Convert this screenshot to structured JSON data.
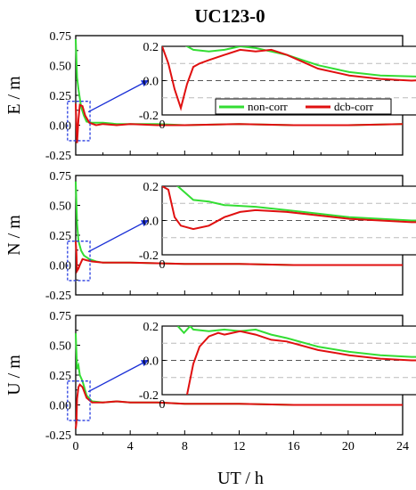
{
  "title": "UC123-0",
  "xlabel": "UT / h",
  "colors": {
    "non_corr": "#33dd33",
    "dcb_corr": "#e01010",
    "arrow": "#1a2fd6",
    "box": "#2a3fe0",
    "ref_black": "#555555",
    "ref_gray": "#bbbbbb"
  },
  "chart_data": [
    {
      "type": "line",
      "panel": "E",
      "ylabel": "E / m",
      "xlim": [
        0,
        24
      ],
      "ylim": [
        -0.25,
        0.75
      ],
      "xticks": [
        0,
        4,
        8,
        12,
        16,
        20,
        24
      ],
      "yticks": [
        "0.75",
        "0.50",
        "0.25",
        "0.00",
        "-0.25"
      ],
      "legend": {
        "position": "inside-inset-bottom-right",
        "entries": [
          "non-corr",
          "dcb-corr"
        ]
      },
      "series": [
        {
          "name": "non-corr",
          "color": "#33dd33",
          "x": [
            0,
            0.1,
            0.2,
            0.4,
            0.6,
            0.8,
            1.2,
            2,
            3,
            4,
            6,
            8,
            12,
            16,
            20,
            24
          ],
          "y": [
            0.72,
            0.4,
            0.3,
            0.15,
            0.08,
            0.03,
            0.02,
            0.02,
            0.01,
            0.01,
            0.01,
            0.0,
            0.01,
            0.0,
            0.0,
            0.01
          ]
        },
        {
          "name": "dcb-corr",
          "color": "#e01010",
          "x": [
            0,
            0.1,
            0.2,
            0.3,
            0.5,
            0.7,
            1.0,
            1.5,
            2,
            3,
            4,
            6,
            8,
            12,
            16,
            20,
            24
          ],
          "y": [
            0.18,
            -0.15,
            0.05,
            0.17,
            0.16,
            0.08,
            0.02,
            0.0,
            0.01,
            0.0,
            0.01,
            0.0,
            0.0,
            0.01,
            0.0,
            0.0,
            0.01
          ]
        }
      ],
      "inset": {
        "xlim": [
          0,
          1
        ],
        "ylim": [
          -0.2,
          0.2
        ],
        "xticks": [
          "0",
          "1"
        ],
        "yticks": [
          "0.2",
          "0.0",
          "-0.2"
        ],
        "ref_lines": [
          0.1,
          0.0,
          -0.1
        ],
        "series": [
          {
            "name": "non-corr",
            "x": [
              0,
              0.03,
              0.06,
              0.1,
              0.15,
              0.2,
              0.25,
              0.3,
              0.35,
              0.4,
              0.5,
              0.6,
              0.7,
              0.8,
              0.9,
              1.0
            ],
            "y": [
              0.35,
              0.28,
              0.22,
              0.18,
              0.17,
              0.18,
              0.2,
              0.19,
              0.17,
              0.15,
              0.09,
              0.05,
              0.03,
              0.025,
              0.02,
              0.02
            ]
          },
          {
            "name": "dcb-corr",
            "x": [
              0,
              0.02,
              0.04,
              0.06,
              0.08,
              0.1,
              0.12,
              0.15,
              0.2,
              0.25,
              0.3,
              0.35,
              0.4,
              0.5,
              0.6,
              0.7,
              0.8,
              0.9,
              1.0
            ],
            "y": [
              0.2,
              0.1,
              -0.05,
              -0.16,
              -0.02,
              0.08,
              0.1,
              0.12,
              0.15,
              0.18,
              0.17,
              0.18,
              0.15,
              0.07,
              0.03,
              0.01,
              0.0,
              0.01,
              0.01
            ]
          }
        ]
      }
    },
    {
      "type": "line",
      "panel": "N",
      "ylabel": "N / m",
      "xlim": [
        0,
        24
      ],
      "ylim": [
        -0.25,
        0.75
      ],
      "xticks": [
        0,
        4,
        8,
        12,
        16,
        20,
        24
      ],
      "yticks": [
        "0.75",
        "0.50",
        "0.25",
        "0.00",
        "-0.25"
      ],
      "series": [
        {
          "name": "non-corr",
          "color": "#33dd33",
          "x": [
            0,
            0.1,
            0.2,
            0.4,
            0.6,
            1.0,
            1.5,
            2,
            4,
            8,
            12,
            16,
            20,
            24
          ],
          "y": [
            0.7,
            0.35,
            0.2,
            0.12,
            0.08,
            0.05,
            0.03,
            0.02,
            0.02,
            0.01,
            0.01,
            0.0,
            0.0,
            0.0
          ]
        },
        {
          "name": "dcb-corr",
          "color": "#e01010",
          "x": [
            0,
            0.05,
            0.1,
            0.2,
            0.3,
            0.5,
            0.8,
            1.2,
            2,
            4,
            8,
            12,
            16,
            20,
            24
          ],
          "y": [
            0.2,
            0.1,
            -0.05,
            -0.03,
            0.0,
            0.05,
            0.04,
            0.03,
            0.02,
            0.02,
            0.01,
            0.01,
            0.0,
            0.0,
            0.0
          ]
        }
      ],
      "inset": {
        "xlim": [
          0,
          1
        ],
        "ylim": [
          -0.2,
          0.2
        ],
        "xticks": [
          "0",
          "1"
        ],
        "yticks": [
          "0.2",
          "0.0",
          "-0.2"
        ],
        "ref_lines": [
          0.1,
          0.0,
          -0.1
        ],
        "series": [
          {
            "name": "non-corr",
            "x": [
              0,
              0.05,
              0.1,
              0.15,
              0.2,
              0.3,
              0.4,
              0.5,
              0.6,
              0.7,
              0.8,
              0.9,
              1.0
            ],
            "y": [
              0.35,
              0.2,
              0.12,
              0.11,
              0.09,
              0.08,
              0.06,
              0.04,
              0.02,
              0.01,
              0.0,
              0.0,
              0.0
            ]
          },
          {
            "name": "dcb-corr",
            "x": [
              0,
              0.02,
              0.04,
              0.06,
              0.1,
              0.15,
              0.2,
              0.25,
              0.3,
              0.4,
              0.5,
              0.6,
              0.7,
              0.8,
              0.9,
              1.0
            ],
            "y": [
              0.2,
              0.18,
              0.02,
              -0.03,
              -0.05,
              -0.03,
              0.02,
              0.05,
              0.06,
              0.05,
              0.03,
              0.01,
              0.0,
              -0.01,
              -0.01,
              0.0
            ]
          }
        ]
      }
    },
    {
      "type": "line",
      "panel": "U",
      "ylabel": "U / m",
      "xlim": [
        0,
        24
      ],
      "ylim": [
        -0.25,
        0.75
      ],
      "xticks": [
        0,
        4,
        8,
        12,
        16,
        20,
        24
      ],
      "yticks": [
        "0.75",
        "0.50",
        "0.25",
        "0.00",
        "-0.25"
      ],
      "series": [
        {
          "name": "non-corr",
          "color": "#33dd33",
          "x": [
            0,
            0.1,
            0.2,
            0.3,
            0.5,
            0.8,
            1.2,
            2,
            3,
            4,
            6,
            8,
            12,
            16,
            20,
            24
          ],
          "y": [
            0.6,
            0.3,
            0.33,
            0.25,
            0.2,
            0.08,
            0.03,
            0.02,
            0.03,
            0.02,
            0.02,
            0.01,
            0.01,
            0.0,
            0.0,
            0.0
          ]
        },
        {
          "name": "dcb-corr",
          "color": "#e01010",
          "x": [
            0,
            0.05,
            0.1,
            0.2,
            0.3,
            0.5,
            0.8,
            1.2,
            2,
            3,
            4,
            6,
            8,
            12,
            16,
            20,
            24
          ],
          "y": [
            -0.2,
            -0.15,
            0.05,
            0.15,
            0.17,
            0.15,
            0.06,
            0.02,
            0.02,
            0.03,
            0.02,
            0.02,
            0.01,
            0.01,
            0.0,
            0.0,
            0.0
          ]
        }
      ],
      "inset": {
        "xlim": [
          0,
          1
        ],
        "ylim": [
          -0.2,
          0.2
        ],
        "xticks": [
          "0",
          "1"
        ],
        "yticks": [
          "0.2",
          "0.0",
          "-0.2"
        ],
        "ref_lines": [
          0.1,
          0.0,
          -0.1
        ],
        "series": [
          {
            "name": "non-corr",
            "x": [
              0.05,
              0.07,
              0.09,
              0.1,
              0.15,
              0.2,
              0.25,
              0.3,
              0.35,
              0.4,
              0.5,
              0.6,
              0.7,
              0.8,
              0.9,
              1.0
            ],
            "y": [
              0.2,
              0.16,
              0.2,
              0.18,
              0.17,
              0.18,
              0.17,
              0.18,
              0.15,
              0.13,
              0.08,
              0.05,
              0.03,
              0.02,
              0.02,
              0.02
            ]
          },
          {
            "name": "dcb-corr",
            "x": [
              0.08,
              0.1,
              0.12,
              0.15,
              0.18,
              0.2,
              0.25,
              0.3,
              0.35,
              0.4,
              0.5,
              0.6,
              0.7,
              0.8,
              0.9,
              1.0
            ],
            "y": [
              -0.2,
              -0.02,
              0.08,
              0.14,
              0.16,
              0.15,
              0.17,
              0.15,
              0.12,
              0.11,
              0.06,
              0.03,
              0.01,
              0.0,
              0.0,
              0.01
            ]
          }
        ]
      }
    }
  ]
}
